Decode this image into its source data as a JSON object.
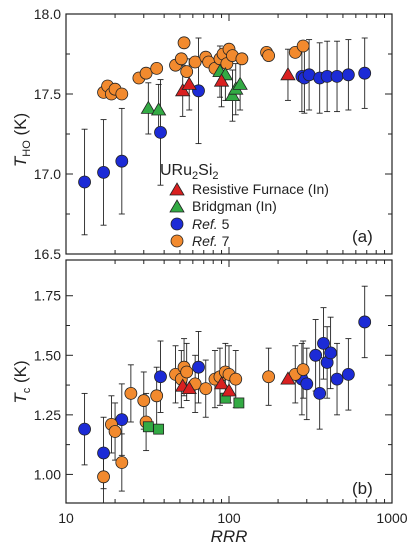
{
  "chart_data": {
    "type": "scatter",
    "xscale": "log",
    "xlim": [
      10,
      1000
    ],
    "xticks": [
      10,
      100,
      1000
    ],
    "xticklabels": [
      "10",
      "100",
      "1000"
    ],
    "xlabel": "RRR",
    "legend": {
      "title_main": "URu",
      "title_sub1": "2",
      "title_mid": "Si",
      "title_sub2": "2",
      "placement": "center-left of panel (a)",
      "entries": [
        {
          "series": "resistive",
          "label": "Resistive Furnace (In)"
        },
        {
          "series": "bridgman",
          "label": "Bridgman (In)"
        },
        {
          "series": "ref5",
          "label_prefix": "Ref.",
          "label_suffix": " 5"
        },
        {
          "series": "ref7",
          "label_prefix": "Ref.",
          "label_suffix": " 7"
        }
      ]
    },
    "styles": {
      "resistive": {
        "marker": "triangle",
        "color": "#d92020"
      },
      "bridgman": {
        "marker": "triangle",
        "color": "#33aa44"
      },
      "bridgman_b": {
        "marker": "square",
        "color": "#33aa44"
      },
      "ref5": {
        "marker": "circle",
        "color": "#1c2bd6"
      },
      "ref7": {
        "marker": "circle",
        "color": "#f28a2e"
      }
    },
    "panels": [
      {
        "id": "a",
        "tag": "(a)",
        "ylabel_main": "T",
        "ylabel_sub": "HO",
        "ylabel_unit": " (K)",
        "ylim": [
          16.5,
          18.0
        ],
        "yticks": [
          16.5,
          17.0,
          17.5,
          18.0
        ],
        "yticklabels": [
          "16.5",
          "17.0",
          "17.5",
          "18.0"
        ],
        "series": [
          {
            "key": "ref5",
            "points": [
              {
                "x": 13,
                "y": 16.95,
                "err": 0.33
              },
              {
                "x": 17,
                "y": 17.01,
                "err": 0.33
              },
              {
                "x": 22,
                "y": 17.08,
                "err": 0.33
              },
              {
                "x": 38,
                "y": 17.26,
                "err": 0.33
              },
              {
                "x": 65,
                "y": 17.52,
                "err": 0.33
              },
              {
                "x": 280,
                "y": 17.61,
                "err": 0.22
              },
              {
                "x": 290,
                "y": 17.6,
                "err": 0.22
              },
              {
                "x": 310,
                "y": 17.62,
                "err": 0.22
              },
              {
                "x": 360,
                "y": 17.6,
                "err": 0.22
              },
              {
                "x": 400,
                "y": 17.61,
                "err": 0.22
              },
              {
                "x": 460,
                "y": 17.61,
                "err": 0.22
              },
              {
                "x": 540,
                "y": 17.62,
                "err": 0.22
              },
              {
                "x": 680,
                "y": 17.63,
                "err": 0.22
              }
            ]
          },
          {
            "key": "ref7",
            "points": [
              {
                "x": 17,
                "y": 17.51
              },
              {
                "x": 18,
                "y": 17.55
              },
              {
                "x": 19,
                "y": 17.5
              },
              {
                "x": 20,
                "y": 17.53
              },
              {
                "x": 22,
                "y": 17.5
              },
              {
                "x": 28,
                "y": 17.6
              },
              {
                "x": 31,
                "y": 17.63
              },
              {
                "x": 36,
                "y": 17.66
              },
              {
                "x": 47,
                "y": 17.68
              },
              {
                "x": 51,
                "y": 17.72
              },
              {
                "x": 53,
                "y": 17.82
              },
              {
                "x": 55,
                "y": 17.64
              },
              {
                "x": 62,
                "y": 17.7
              },
              {
                "x": 72,
                "y": 17.73
              },
              {
                "x": 75,
                "y": 17.7
              },
              {
                "x": 82,
                "y": 17.66
              },
              {
                "x": 88,
                "y": 17.72
              },
              {
                "x": 92,
                "y": 17.75
              },
              {
                "x": 97,
                "y": 17.69
              },
              {
                "x": 100,
                "y": 17.78
              },
              {
                "x": 105,
                "y": 17.74
              },
              {
                "x": 120,
                "y": 17.72
              },
              {
                "x": 170,
                "y": 17.76
              },
              {
                "x": 175,
                "y": 17.74
              },
              {
                "x": 255,
                "y": 17.76
              },
              {
                "x": 285,
                "y": 17.8
              }
            ]
          },
          {
            "key": "bridgman",
            "points": [
              {
                "x": 32,
                "y": 17.41,
                "err": 0.16
              },
              {
                "x": 37,
                "y": 17.4,
                "err": 0.16
              },
              {
                "x": 88,
                "y": 17.64,
                "err": 0.16
              },
              {
                "x": 95,
                "y": 17.62,
                "err": 0.16
              },
              {
                "x": 105,
                "y": 17.49,
                "err": 0.16
              },
              {
                "x": 110,
                "y": 17.53,
                "err": 0.16
              },
              {
                "x": 117,
                "y": 17.56,
                "err": 0.16
              }
            ]
          },
          {
            "key": "resistive",
            "points": [
              {
                "x": 52,
                "y": 17.52,
                "err": 0.16
              },
              {
                "x": 57,
                "y": 17.56,
                "err": 0.16
              },
              {
                "x": 90,
                "y": 17.58,
                "err": 0.16
              },
              {
                "x": 230,
                "y": 17.62,
                "err": 0.16
              }
            ]
          }
        ]
      },
      {
        "id": "b",
        "tag": "(b)",
        "ylabel_main": "T",
        "ylabel_sub": "c",
        "ylabel_unit": " (K)",
        "ylim": [
          0.88,
          1.9
        ],
        "yticks": [
          1.0,
          1.25,
          1.5,
          1.75
        ],
        "yticklabels": [
          "1.00",
          "1.25",
          "1.50",
          "1.75"
        ],
        "series": [
          {
            "key": "ref5",
            "points": [
              {
                "x": 13,
                "y": 1.19,
                "err": 0.15
              },
              {
                "x": 17,
                "y": 1.09,
                "err": 0.15
              },
              {
                "x": 22,
                "y": 1.23,
                "err": 0.15
              },
              {
                "x": 38,
                "y": 1.41,
                "err": 0.15
              },
              {
                "x": 65,
                "y": 1.45,
                "err": 0.15
              },
              {
                "x": 280,
                "y": 1.4,
                "err": 0.15
              },
              {
                "x": 300,
                "y": 1.38,
                "err": 0.15
              },
              {
                "x": 340,
                "y": 1.5,
                "err": 0.15
              },
              {
                "x": 360,
                "y": 1.34,
                "err": 0.15
              },
              {
                "x": 380,
                "y": 1.55,
                "err": 0.15
              },
              {
                "x": 400,
                "y": 1.47,
                "err": 0.15
              },
              {
                "x": 420,
                "y": 1.51,
                "err": 0.15
              },
              {
                "x": 460,
                "y": 1.4,
                "err": 0.15
              },
              {
                "x": 540,
                "y": 1.42,
                "err": 0.15
              },
              {
                "x": 680,
                "y": 1.64,
                "err": 0.15
              }
            ]
          },
          {
            "key": "ref7",
            "points": [
              {
                "x": 17,
                "y": 0.99,
                "err": 0.12
              },
              {
                "x": 19,
                "y": 1.21,
                "err": 0.12
              },
              {
                "x": 20,
                "y": 1.18,
                "err": 0.12
              },
              {
                "x": 22,
                "y": 1.05,
                "err": 0.12
              },
              {
                "x": 25,
                "y": 1.34,
                "err": 0.12
              },
              {
                "x": 30,
                "y": 1.31,
                "err": 0.12
              },
              {
                "x": 31,
                "y": 1.22,
                "err": 0.12
              },
              {
                "x": 36,
                "y": 1.33,
                "err": 0.12
              },
              {
                "x": 47,
                "y": 1.42,
                "err": 0.12
              },
              {
                "x": 51,
                "y": 1.4,
                "err": 0.12
              },
              {
                "x": 53,
                "y": 1.45,
                "err": 0.12
              },
              {
                "x": 55,
                "y": 1.43,
                "err": 0.12
              },
              {
                "x": 62,
                "y": 1.38,
                "err": 0.12
              },
              {
                "x": 72,
                "y": 1.36,
                "err": 0.12
              },
              {
                "x": 82,
                "y": 1.4,
                "err": 0.12
              },
              {
                "x": 88,
                "y": 1.41,
                "err": 0.12
              },
              {
                "x": 95,
                "y": 1.43,
                "err": 0.12
              },
              {
                "x": 100,
                "y": 1.42,
                "err": 0.12
              },
              {
                "x": 110,
                "y": 1.4,
                "err": 0.12
              },
              {
                "x": 175,
                "y": 1.41,
                "err": 0.12
              },
              {
                "x": 255,
                "y": 1.42,
                "err": 0.12
              },
              {
                "x": 285,
                "y": 1.44,
                "err": 0.12
              }
            ]
          },
          {
            "key": "bridgman_b",
            "points": [
              {
                "x": 32,
                "y": 1.2
              },
              {
                "x": 37,
                "y": 1.19
              },
              {
                "x": 95,
                "y": 1.32
              },
              {
                "x": 115,
                "y": 1.3
              }
            ]
          },
          {
            "key": "resistive",
            "points": [
              {
                "x": 52,
                "y": 1.37
              },
              {
                "x": 57,
                "y": 1.36
              },
              {
                "x": 90,
                "y": 1.38
              },
              {
                "x": 100,
                "y": 1.35
              },
              {
                "x": 230,
                "y": 1.4
              }
            ]
          }
        ]
      }
    ]
  }
}
